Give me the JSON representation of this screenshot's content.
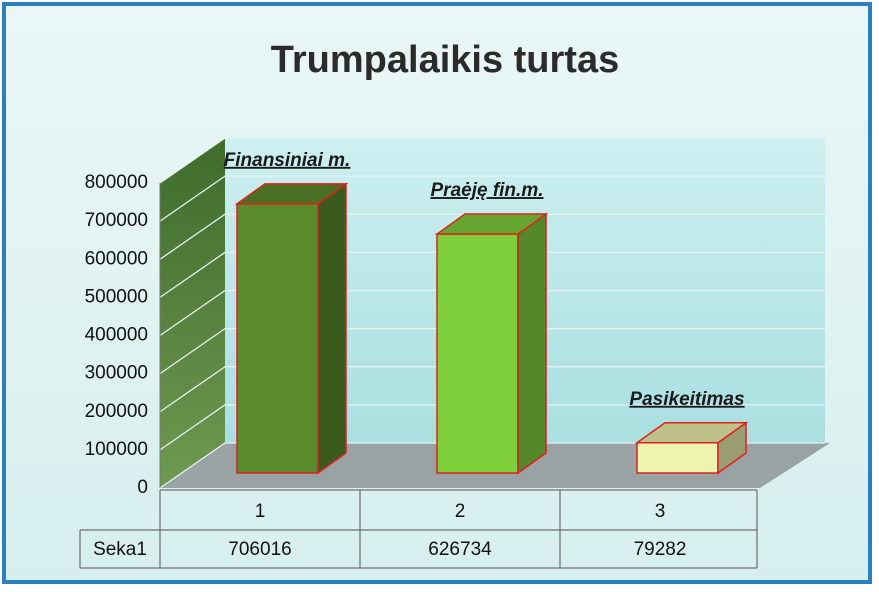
{
  "chart_data": {
    "type": "bar3d",
    "title": "Trumpalaikis turtas",
    "categories": [
      "1",
      "2",
      "3"
    ],
    "series": [
      {
        "name": "Seka1",
        "values": [
          706016,
          626734,
          79282
        ]
      }
    ],
    "colors": [
      "#5b8c2c",
      "#7fcf3c",
      "#eef3ad"
    ],
    "annotations": [
      "Finansiniai m.",
      "Praėję fin.m.",
      "Pasikeitimas"
    ],
    "ylim": [
      0,
      800000
    ],
    "yticks": [
      0,
      100000,
      200000,
      300000,
      400000,
      500000,
      600000,
      700000,
      800000
    ],
    "grid": true
  }
}
